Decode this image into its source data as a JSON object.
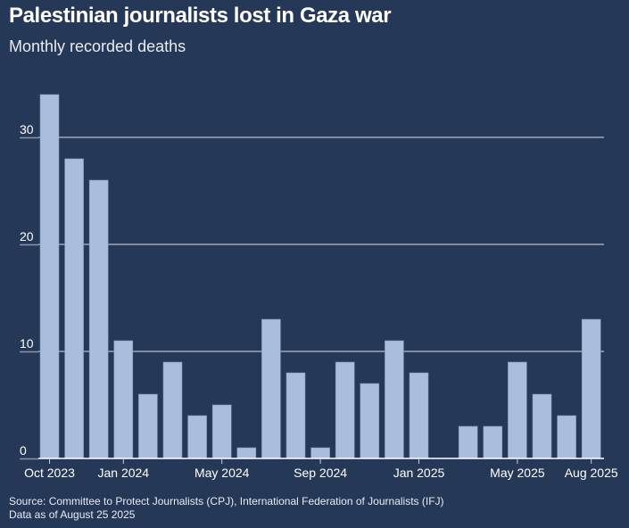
{
  "header": {
    "title": "Palestinian journalists lost in Gaza war",
    "subtitle": "Monthly recorded deaths"
  },
  "footer": {
    "source": "Source: Committee to Protect Journalists (CPJ), International Federation of Journalists (IFJ)",
    "note": "Data as of August 25 2025"
  },
  "colors": {
    "background": "#263858",
    "bar": "#a8bedc",
    "gridline": "#d9dee8",
    "axis_tick": "#8a94a8"
  },
  "chart_data": {
    "type": "bar",
    "title": "Palestinian journalists lost in Gaza war",
    "subtitle": "Monthly recorded deaths",
    "xlabel": "",
    "ylabel": "",
    "ylim": [
      0,
      35
    ],
    "yticks": [
      0,
      10,
      20,
      30
    ],
    "grid": true,
    "categories": [
      "Oct 2023",
      "Nov 2023",
      "Dec 2023",
      "Jan 2024",
      "Feb 2024",
      "Mar 2024",
      "Apr 2024",
      "May 2024",
      "Jun 2024",
      "Jul 2024",
      "Aug 2024",
      "Sep 2024",
      "Oct 2024",
      "Nov 2024",
      "Dec 2024",
      "Jan 2025",
      "Feb 2025",
      "Mar 2025",
      "Apr 2025",
      "May 2025",
      "Jun 2025",
      "Jul 2025",
      "Aug 2025"
    ],
    "values": [
      34,
      28,
      26,
      11,
      6,
      9,
      4,
      5,
      1,
      13,
      8,
      1,
      9,
      7,
      11,
      8,
      0,
      3,
      3,
      9,
      6,
      4,
      13
    ],
    "xtick_labels": [
      {
        "index": 0,
        "label": "Oct 2023"
      },
      {
        "index": 3,
        "label": "Jan 2024"
      },
      {
        "index": 7,
        "label": "May 2024"
      },
      {
        "index": 11,
        "label": "Sep 2024"
      },
      {
        "index": 15,
        "label": "Jan 2025"
      },
      {
        "index": 19,
        "label": "May 2025"
      },
      {
        "index": 22,
        "label": "Aug 2025"
      }
    ]
  }
}
